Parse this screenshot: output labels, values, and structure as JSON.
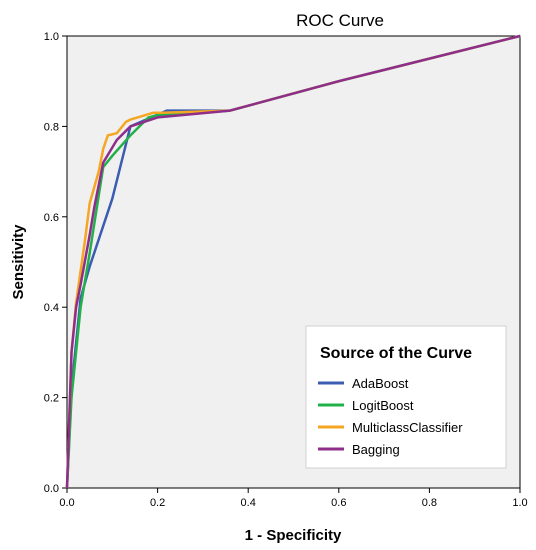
{
  "chart_data": {
    "type": "line",
    "title": "ROC Curve",
    "xlabel": "1 - Specificity",
    "ylabel": "Sensitivity",
    "xlim": [
      0,
      1
    ],
    "ylim": [
      0,
      1
    ],
    "x_ticks": [
      "0.0",
      "0.2",
      "0.4",
      "0.6",
      "0.8",
      "1.0"
    ],
    "y_ticks": [
      "0.0",
      "0.2",
      "0.4",
      "0.6",
      "0.8",
      "1.0"
    ],
    "grid": false,
    "legend": {
      "title": "Source of the Curve",
      "placement": "bottom-right"
    },
    "series": [
      {
        "name": "AdaBoost",
        "color": "#3b5cb0",
        "x": [
          0,
          0.01,
          0.03,
          0.05,
          0.1,
          0.14,
          0.22,
          0.36,
          0.6,
          1.0
        ],
        "y": [
          0,
          0.22,
          0.42,
          0.49,
          0.64,
          0.8,
          0.835,
          0.835,
          0.9,
          1.0
        ]
      },
      {
        "name": "LogitBoost",
        "color": "#22b04a",
        "x": [
          0,
          0.01,
          0.03,
          0.05,
          0.08,
          0.1,
          0.14,
          0.18,
          0.2,
          0.36,
          0.6,
          1.0
        ],
        "y": [
          0,
          0.2,
          0.4,
          0.52,
          0.71,
          0.735,
          0.78,
          0.82,
          0.825,
          0.835,
          0.9,
          1.0
        ]
      },
      {
        "name": "MulticlassClassifier",
        "color": "#f5a623",
        "x": [
          0,
          0.01,
          0.02,
          0.04,
          0.05,
          0.07,
          0.08,
          0.09,
          0.11,
          0.13,
          0.14,
          0.19,
          0.21,
          0.36,
          0.6,
          1.0
        ],
        "y": [
          0,
          0.3,
          0.41,
          0.55,
          0.63,
          0.7,
          0.75,
          0.78,
          0.785,
          0.81,
          0.815,
          0.83,
          0.83,
          0.835,
          0.9,
          1.0
        ]
      },
      {
        "name": "Bagging",
        "color": "#8e2e8a",
        "x": [
          0,
          0.01,
          0.02,
          0.03,
          0.05,
          0.06,
          0.08,
          0.11,
          0.14,
          0.2,
          0.36,
          0.6,
          1.0
        ],
        "y": [
          0,
          0.3,
          0.4,
          0.45,
          0.56,
          0.62,
          0.72,
          0.77,
          0.8,
          0.82,
          0.835,
          0.9,
          1.0
        ]
      }
    ]
  }
}
